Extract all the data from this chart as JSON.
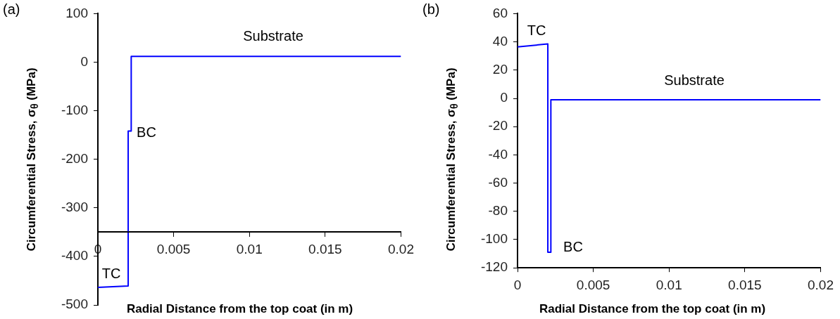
{
  "chart_data": [
    {
      "type": "line",
      "xlabel": "Radial Distance from the top coat (in m)",
      "ylabel": "Circumferential Stress, σ$_{θ}$ (MPa)",
      "x": [
        0,
        0.002,
        0.002,
        0.0022,
        0.0022,
        0.02
      ],
      "series": [
        {
          "color": "#0000ff",
          "values": [
            -464,
            -461,
            -142,
            -142,
            12,
            12
          ]
        }
      ],
      "xlim": [
        0,
        0.02
      ],
      "xticks": [
        0,
        0.005,
        0.01,
        0.015,
        0.02
      ],
      "ylim": [
        -500,
        100
      ],
      "yticks": [
        -500,
        -400,
        -300,
        -200,
        -100,
        0,
        100
      ],
      "ref_lines": [
        {
          "axis": "y",
          "value": -350,
          "color": "#000000"
        }
      ],
      "marker": "none",
      "line_style": "solid",
      "annotations": [
        "(a)",
        "Substrate",
        "BC",
        "TC"
      ]
    },
    {
      "type": "line",
      "xlabel": "Radial Distance from the top coat (in m)",
      "ylabel": "Circumferential Stress, σ$_{θ}$ (MPa)",
      "x": [
        0,
        0.002,
        0.002,
        0.0022,
        0.0022,
        0.02
      ],
      "series": [
        {
          "color": "#0000ff",
          "values": [
            36.5,
            38.5,
            -109,
            -109,
            -1,
            -1
          ]
        }
      ],
      "xlim": [
        0,
        0.02
      ],
      "xticks": [
        0,
        0.005,
        0.01,
        0.015,
        0.02
      ],
      "ylim": [
        -120,
        60
      ],
      "yticks": [
        -120,
        -100,
        -80,
        -60,
        -40,
        -20,
        0,
        20,
        40,
        60
      ],
      "marker": "none",
      "line_style": "solid",
      "annotations": [
        "(b)",
        "Substrate",
        "TC",
        "BC"
      ]
    }
  ]
}
